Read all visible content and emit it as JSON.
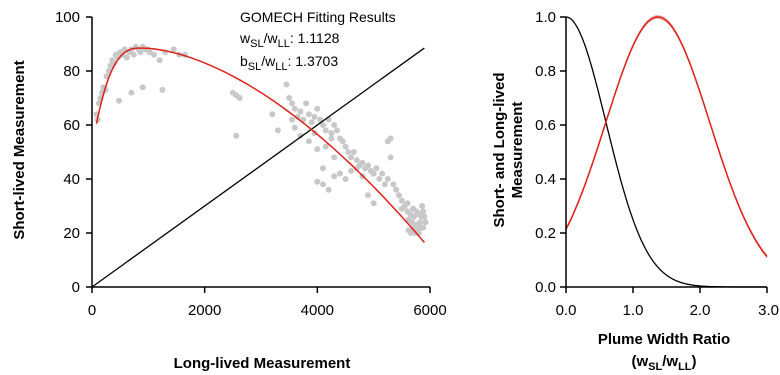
{
  "chart_data": [
    {
      "type": "scatter",
      "xlabel": "Long-lived Measurement",
      "ylabel": "Short-lived Measurement",
      "xlim": [
        0,
        6000
      ],
      "ylim": [
        0,
        100
      ],
      "x_ticks": [
        "0",
        "2000",
        "4000",
        "6000"
      ],
      "y_ticks": [
        "0",
        "20",
        "40",
        "60",
        "80",
        "100"
      ],
      "annotation": {
        "title": "GOMECH Fitting Results",
        "line1_prefix": "w",
        "line1_sub": "SL",
        "line1_mid": "/w",
        "line1_sub2": "LL",
        "line1_value": ": 1.1128",
        "line2_prefix": "b",
        "line2_sub": "SL",
        "line2_mid": "/w",
        "line2_sub2": "LL",
        "line2_value": ": 1.3703"
      },
      "scatter_color": "#c8c8c8",
      "fit_color": "#e0201b",
      "identity_color": "#000000",
      "points": [
        [
          80,
          64
        ],
        [
          100,
          62
        ],
        [
          120,
          68
        ],
        [
          150,
          70
        ],
        [
          180,
          72
        ],
        [
          200,
          74
        ],
        [
          240,
          73
        ],
        [
          260,
          78
        ],
        [
          300,
          80
        ],
        [
          330,
          82
        ],
        [
          360,
          84
        ],
        [
          400,
          83
        ],
        [
          420,
          86
        ],
        [
          460,
          85
        ],
        [
          500,
          87
        ],
        [
          540,
          86
        ],
        [
          580,
          88
        ],
        [
          620,
          85
        ],
        [
          660,
          87
        ],
        [
          700,
          88
        ],
        [
          740,
          86
        ],
        [
          780,
          89
        ],
        [
          820,
          88
        ],
        [
          860,
          87
        ],
        [
          900,
          89
        ],
        [
          940,
          88
        ],
        [
          980,
          88
        ],
        [
          1020,
          87
        ],
        [
          1100,
          86
        ],
        [
          1200,
          84
        ],
        [
          1300,
          87
        ],
        [
          1450,
          88
        ],
        [
          1550,
          86
        ],
        [
          1650,
          86
        ],
        [
          480,
          69
        ],
        [
          700,
          72
        ],
        [
          900,
          74
        ],
        [
          1250,
          73
        ],
        [
          2500,
          72
        ],
        [
          2560,
          71
        ],
        [
          2620,
          70
        ],
        [
          2560,
          56
        ],
        [
          3450,
          75
        ],
        [
          3500,
          70
        ],
        [
          3550,
          68
        ],
        [
          3600,
          66
        ],
        [
          3650,
          63
        ],
        [
          3700,
          65
        ],
        [
          3750,
          62
        ],
        [
          3800,
          68
        ],
        [
          3850,
          64
        ],
        [
          3900,
          61
        ],
        [
          3950,
          63
        ],
        [
          4000,
          66
        ],
        [
          4050,
          62
        ],
        [
          4100,
          60
        ],
        [
          4150,
          58
        ],
        [
          4200,
          62
        ],
        [
          4250,
          57
        ],
        [
          4300,
          60
        ],
        [
          3600,
          59
        ],
        [
          3700,
          56
        ],
        [
          3850,
          54
        ],
        [
          4000,
          51
        ],
        [
          4150,
          52
        ],
        [
          4250,
          55
        ],
        [
          4300,
          48
        ],
        [
          4100,
          44
        ],
        [
          3550,
          62
        ],
        [
          3950,
          57
        ],
        [
          3300,
          58
        ],
        [
          3200,
          64
        ],
        [
          4350,
          58
        ],
        [
          4400,
          55
        ],
        [
          4450,
          54
        ],
        [
          4500,
          52
        ],
        [
          4550,
          50
        ],
        [
          4600,
          48
        ],
        [
          4650,
          50
        ],
        [
          4700,
          47
        ],
        [
          4750,
          45
        ],
        [
          4800,
          46
        ],
        [
          4850,
          44
        ],
        [
          4900,
          45
        ],
        [
          4950,
          43
        ],
        [
          5000,
          42
        ],
        [
          5050,
          44
        ],
        [
          5100,
          40
        ],
        [
          5150,
          42
        ],
        [
          5200,
          38
        ],
        [
          5250,
          40
        ],
        [
          5300,
          48
        ],
        [
          5300,
          55
        ],
        [
          5250,
          54
        ],
        [
          5350,
          38
        ],
        [
          4800,
          41
        ],
        [
          4700,
          44
        ],
        [
          4600,
          43
        ],
        [
          4500,
          40
        ],
        [
          4400,
          42
        ],
        [
          4300,
          41
        ],
        [
          4200,
          36
        ],
        [
          4100,
          38
        ],
        [
          4000,
          39
        ],
        [
          5000,
          31
        ],
        [
          4900,
          34
        ],
        [
          5400,
          36
        ],
        [
          5450,
          34
        ],
        [
          5500,
          32
        ],
        [
          5550,
          30
        ],
        [
          5600,
          28
        ],
        [
          5620,
          25
        ],
        [
          5650,
          27
        ],
        [
          5680,
          24
        ],
        [
          5700,
          22
        ],
        [
          5720,
          26
        ],
        [
          5740,
          20
        ],
        [
          5760,
          23
        ],
        [
          5780,
          21
        ],
        [
          5800,
          27
        ],
        [
          5820,
          24
        ],
        [
          5840,
          22
        ],
        [
          5860,
          30
        ],
        [
          5880,
          28
        ],
        [
          5900,
          26
        ],
        [
          5920,
          24
        ],
        [
          5660,
          20
        ],
        [
          5700,
          21
        ],
        [
          5750,
          22
        ],
        [
          5800,
          20
        ],
        [
          5880,
          22
        ],
        [
          5700,
          29
        ],
        [
          5600,
          31
        ],
        [
          5500,
          29
        ],
        [
          5620,
          21
        ],
        [
          5760,
          28
        ],
        [
          5850,
          26
        ]
      ]
    },
    {
      "type": "line",
      "xlabel_line1": "Plume Width Ratio",
      "xlabel_line2_prefix": "(w",
      "xlabel_line2_sub": "SL",
      "xlabel_line2_mid": "/w",
      "xlabel_line2_sub2": "LL",
      "xlabel_line2_suffix": ")",
      "ylabel_line1": "Short- and Long-lived",
      "ylabel_line2": "Measurement",
      "xlim": [
        0,
        3
      ],
      "ylim": [
        0,
        1
      ],
      "x_ticks": [
        "0.0",
        "1.0",
        "2.0",
        "3.0"
      ],
      "y_ticks": [
        "0.0",
        "0.2",
        "0.4",
        "0.6",
        "0.8",
        "1.0"
      ],
      "series": [
        {
          "color": "#000000",
          "type": "gaussian",
          "mu": 0.0,
          "sigma": 0.6
        },
        {
          "color": "#e0201b",
          "type": "gaussian",
          "mu": 1.37,
          "sigma": 0.78
        }
      ]
    }
  ]
}
